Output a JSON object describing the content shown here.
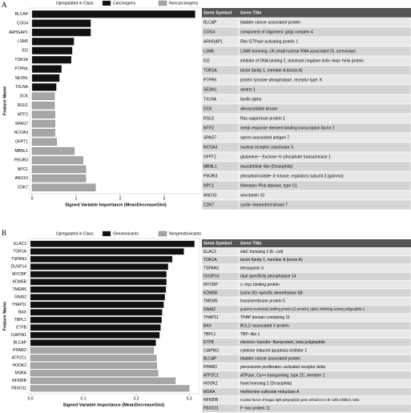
{
  "panel_labels": [
    "A",
    "B"
  ],
  "chart_data": [
    {
      "type": "bar",
      "orientation": "horizontal",
      "legend_title": "Upregulated in Class:",
      "legend": [
        {
          "label": "Carcinogens",
          "color": "#111111"
        },
        {
          "label": "Noncarcinogens",
          "color": "#a6a6a6"
        }
      ],
      "categories": [
        "BLCAP",
        "COG4",
        "ARHGAP1",
        "LSM6",
        "ID2",
        "TOR1A",
        "PTPRK",
        "SESN1",
        "TXLNA",
        "DCK",
        "RSU1",
        "MTF2",
        "SPAG7",
        "NCOA3",
        "GFPT1",
        "MBNL1",
        "PIK3R3",
        "NPC1",
        "ANO10",
        "CDK7"
      ],
      "values": [
        3.7,
        1.33,
        1.33,
        0.95,
        0.91,
        0.89,
        0.67,
        0.62,
        0.55,
        0.51,
        0.51,
        0.52,
        0.52,
        0.52,
        0.56,
        0.96,
        1.16,
        1.22,
        1.22,
        1.44
      ],
      "colors": [
        "#111111",
        "#111111",
        "#111111",
        "#111111",
        "#111111",
        "#111111",
        "#111111",
        "#111111",
        "#111111",
        "#a6a6a6",
        "#a6a6a6",
        "#a6a6a6",
        "#a6a6a6",
        "#a6a6a6",
        "#a6a6a6",
        "#a6a6a6",
        "#a6a6a6",
        "#a6a6a6",
        "#a6a6a6",
        "#a6a6a6"
      ],
      "x_label": "Signed Variable Importance (MeanDecreaseGini)",
      "y_label": "Feature Name",
      "xlim": [
        0,
        3.8
      ],
      "xticks": [
        0,
        1,
        2,
        3
      ]
    },
    {
      "type": "bar",
      "orientation": "horizontal",
      "legend_title": "Upregulated in Class:",
      "legend": [
        {
          "label": "Genotoxicants",
          "color": "#111111"
        },
        {
          "label": "Nongenotoxicants",
          "color": "#a6a6a6"
        }
      ],
      "categories": [
        "ELAC2",
        "TOR1A",
        "TSPAN3",
        "DUSP14",
        "MYCBP",
        "KDM5B",
        "TMEM5",
        "GNAI2",
        "THAP11",
        "BAX",
        "TBPL1",
        "ETFB",
        "CIAPIN1",
        "BLCAP",
        "PPARD",
        "ATP2C1",
        "HOOK2",
        "MSRA",
        "NFKBIB",
        "FBXO11"
      ],
      "values": [
        0.31,
        0.29,
        0.268,
        0.26,
        0.257,
        0.257,
        0.256,
        0.254,
        0.252,
        0.249,
        0.248,
        0.246,
        0.244,
        0.237,
        0.233,
        0.238,
        0.239,
        0.241,
        0.274,
        0.3
      ],
      "colors": [
        "#111111",
        "#111111",
        "#111111",
        "#111111",
        "#111111",
        "#111111",
        "#111111",
        "#111111",
        "#111111",
        "#111111",
        "#111111",
        "#111111",
        "#111111",
        "#111111",
        "#a6a6a6",
        "#a6a6a6",
        "#a6a6a6",
        "#a6a6a6",
        "#a6a6a6",
        "#a6a6a6"
      ],
      "x_label": "Signed Variable Importance (MeanDecreaseGini)",
      "y_label": "Feature Name",
      "xlim": [
        0,
        0.315
      ],
      "xticks": [
        {
          "value": 0,
          "label": "0.0"
        },
        {
          "value": 0.1,
          "label": "0.1"
        },
        {
          "value": 0.2,
          "label": "0.2"
        },
        {
          "value": 0.3,
          "label": "0.3"
        }
      ]
    }
  ],
  "tables": [
    {
      "columns": [
        "Gene Symbol",
        "Gene Title"
      ],
      "rows": [
        [
          "BLCAP",
          "bladder cancer associated protein"
        ],
        [
          "COG4",
          "component of oligomeric golgi complex 4"
        ],
        [
          "ARHGAP1",
          "Rho GTPase activating protein 1"
        ],
        [
          "LSM6",
          "LSM6 homolog, U6 small nuclear RNA associated (S. cerevisiae)"
        ],
        [
          "ID2",
          "inhibitor of DNA binding 2, dominant negative helix−loop−helix protein"
        ],
        [
          "TOR1A",
          "torsin family 1, member A (torsin A)"
        ],
        [
          "PTPRK",
          "protein tyrosine phosphatase, receptor type, K"
        ],
        [
          "SESN1",
          "sestrin 1"
        ],
        [
          "TXLNA",
          "taxilin alpha"
        ],
        [
          "DCK",
          "deoxycytidine kinase"
        ],
        [
          "RSU1",
          "Ras suppressor protein 1"
        ],
        [
          "MTF2",
          "metal response element binding transcription factor 2"
        ],
        [
          "SPAG7",
          "sperm associated antigen 7"
        ],
        [
          "NCOA3",
          "nuclear receptor coactivator 3"
        ],
        [
          "GFPT1",
          "glutamine−−fructose−6−phosphate transaminase 1"
        ],
        [
          "MBNL1",
          "muscleblind−like (Drosophila)"
        ],
        [
          "PIK3R3",
          "phosphoinositide−3−kinase, regulatory subunit 3 (gamma)"
        ],
        [
          "NPC1",
          "Niemann−Pick disease, type C1"
        ],
        [
          "ANO10",
          "anoctamin 10"
        ],
        [
          "CDK7",
          "cyclin−dependent kinase 7"
        ]
      ]
    },
    {
      "columns": [
        "Gene Symbol",
        "Gene Title"
      ],
      "rows": [
        [
          "ELAC2",
          "elaC homolog 2 (E. coli)"
        ],
        [
          "TOR1A",
          "torsin family 1, member A (torsin A)"
        ],
        [
          "TSPAN3",
          "tetraspanin 3"
        ],
        [
          "DUSP14",
          "dual specificity phosphatase 14"
        ],
        [
          "MYCBP",
          "c−myc binding protein"
        ],
        [
          "KDM5B",
          "lysine (K)−specific demethylase 5B"
        ],
        [
          "TMEM5",
          "transmembrane protein 5"
        ],
        [
          "GNAI2",
          "guanine nucleotide binding protein (G protein), alpha inhibiting activity polypeptide 2"
        ],
        [
          "THAP11",
          "THAP domain containing 11"
        ],
        [
          "BAX",
          "BCL2−associated X protein"
        ],
        [
          "TBPL1",
          "TBP−like 1"
        ],
        [
          "ETFB",
          "electron−transfer−flavoprotein, beta polypeptide"
        ],
        [
          "CIAPIN1",
          "cytokine induced apoptosis inhibitor 1"
        ],
        [
          "BLCAP",
          "bladder cancer associated protein"
        ],
        [
          "PPARD",
          "peroxisome proliferator−activated receptor delta"
        ],
        [
          "ATP2C1",
          "ATPase, Ca++ transporting, type 2C, member 1"
        ],
        [
          "HOOK2",
          "hook homolog 2 (Drosophila)"
        ],
        [
          "MSRA",
          "methionine sulfoxide reductase A"
        ],
        [
          "NFKBIB",
          "nuclear factor of kappa light polypeptide gene enhancer in B−cells inhibitor, beta"
        ],
        [
          "FBXO11",
          "F−box protein 11"
        ]
      ]
    }
  ]
}
